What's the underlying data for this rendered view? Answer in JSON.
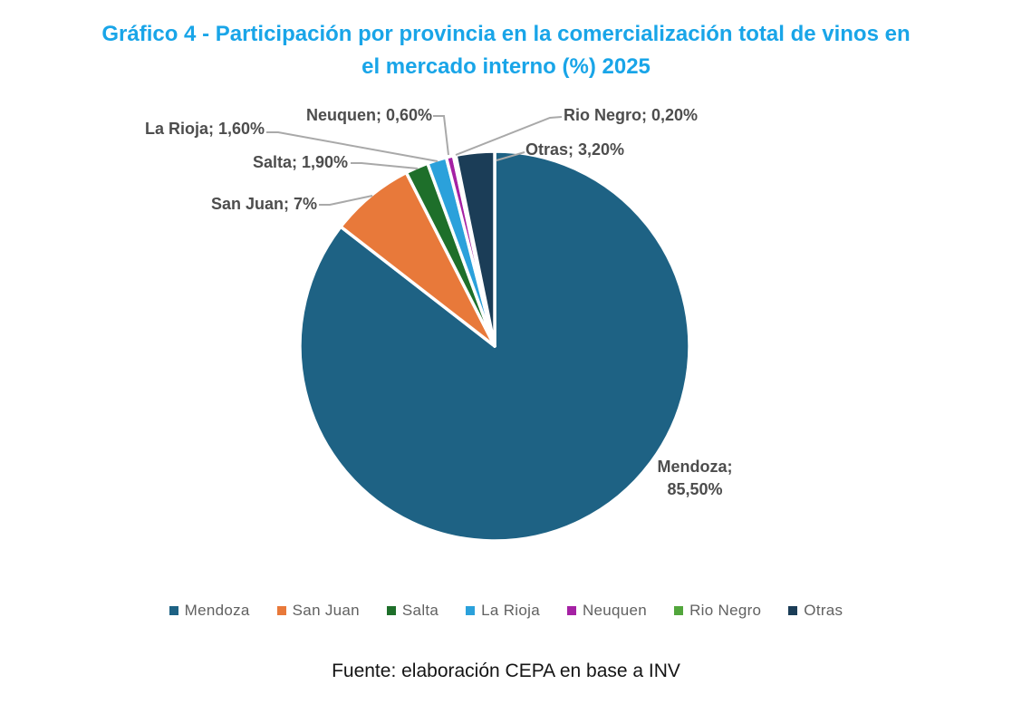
{
  "title": {
    "line1": "Gráfico 4 - Participación por provincia en la comercialización total de vinos en",
    "line2": "el mercado interno (%) 2025",
    "color": "#19A5E8"
  },
  "chart_data": {
    "type": "pie",
    "title": "Gráfico 4 - Participación por provincia en la comercialización total de vinos en el mercado interno (%) 2025",
    "categories": [
      "Mendoza",
      "San Juan",
      "Salta",
      "La Rioja",
      "Neuquen",
      "Rio Negro",
      "Otras"
    ],
    "values": [
      85.5,
      7,
      1.9,
      1.6,
      0.6,
      0.2,
      3.2
    ],
    "value_labels": [
      "Mendoza;\n85,50%",
      "San Juan; 7%",
      "Salta; 1,90%",
      "La Rioja; 1,60%",
      "Neuquen; 0,60%",
      "Rio Negro; 0,20%",
      "Otras; 3,20%"
    ],
    "colors": [
      "#1E6284",
      "#E8793A",
      "#1E6F2A",
      "#2BA1DB",
      "#A521A4",
      "#52A63C",
      "#1B3D57"
    ],
    "start_angle_deg": 0,
    "direction": "clockwise",
    "slice_separator_color": "#FFFFFF",
    "data_label_color": "#4D4D4D",
    "leader_line_color": "#A9A9A9",
    "legend_position": "bottom",
    "legend_text_color": "#616161"
  },
  "footer": {
    "text": "Fuente: elaboración CEPA en base a INV"
  }
}
